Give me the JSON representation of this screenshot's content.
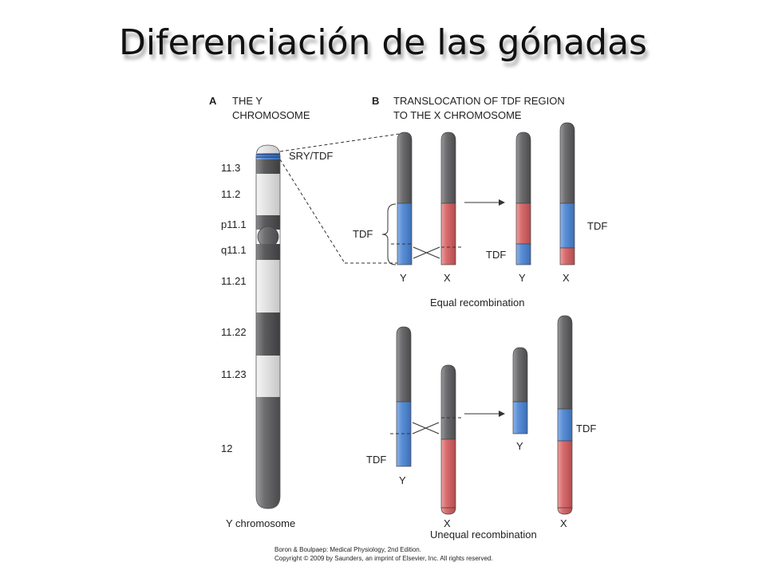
{
  "slide": {
    "title": "Diferenciación de las gónadas"
  },
  "panel_a": {
    "letter": "A",
    "title_line1": "THE Y",
    "title_line2": "CHROMOSOME",
    "gene_label": "SRY/TDF",
    "bands": [
      "11.3",
      "11.2",
      "p11.1",
      "q11.1",
      "11.21",
      "11.22",
      "11.23",
      "12"
    ],
    "caption": "Y chromosome"
  },
  "panel_b": {
    "letter": "B",
    "title_line1": "TRANSLOCATION OF TDF REGION",
    "title_line2": "TO THE X CHROMOSOME",
    "equal": {
      "tdf_left": "TDF",
      "tdf_mid": "TDF",
      "tdf_right": "TDF",
      "labels": [
        "Y",
        "X",
        "Y",
        "X"
      ],
      "caption": "Equal recombination"
    },
    "unequal": {
      "tdf_left": "TDF",
      "tdf_right": "TDF",
      "labels": [
        "Y",
        "X",
        "Y",
        "X"
      ],
      "caption": "Unequal recombination"
    }
  },
  "credit": {
    "line1": "Boron & Boulpaep: Medical Physiology, 2nd Edition.",
    "line2": "Copyright © 2009 by Saunders, an imprint of Elsevier, Inc. All rights reserved."
  },
  "colors": {
    "gray": "#6e6e70",
    "blue": "#5b8fd6",
    "red": "#d86d6f",
    "light": "#e3e3e3"
  }
}
